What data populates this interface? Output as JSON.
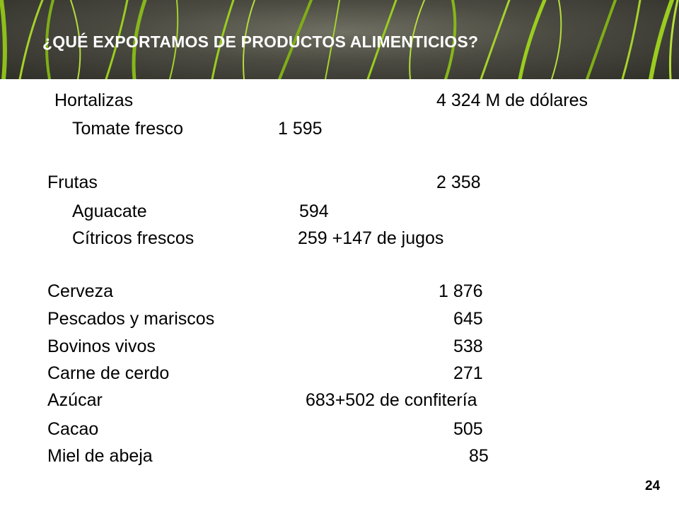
{
  "header": {
    "title": "¿QUÉ EXPORTAMOS DE PRODUCTOS ALIMENTICIOS?"
  },
  "items": [
    {
      "label": "Hortalizas",
      "value": "4 324 M de dólares"
    },
    {
      "label": "Tomate fresco",
      "value": "1 595"
    },
    {
      "label": "Frutas",
      "value": "2 358"
    },
    {
      "label": "Aguacate",
      "value": "594"
    },
    {
      "label": "Cítricos frescos",
      "value": "259 +147 de jugos"
    },
    {
      "label": "Cerveza",
      "value": "1 876"
    },
    {
      "label": "Pescados y mariscos",
      "value": "645"
    },
    {
      "label": "Bovinos vivos",
      "value": "538"
    },
    {
      "label": "Carne de cerdo",
      "value": "271"
    },
    {
      "label": "Azúcar",
      "value": "683+502 de confitería"
    },
    {
      "label": "Cacao",
      "value": "505"
    },
    {
      "label": "Miel de abeja",
      "value": "85"
    }
  ],
  "footer": {
    "page_number": "24"
  },
  "colors": {
    "header_text": "#ffffff",
    "grass": "#9acd1e"
  }
}
